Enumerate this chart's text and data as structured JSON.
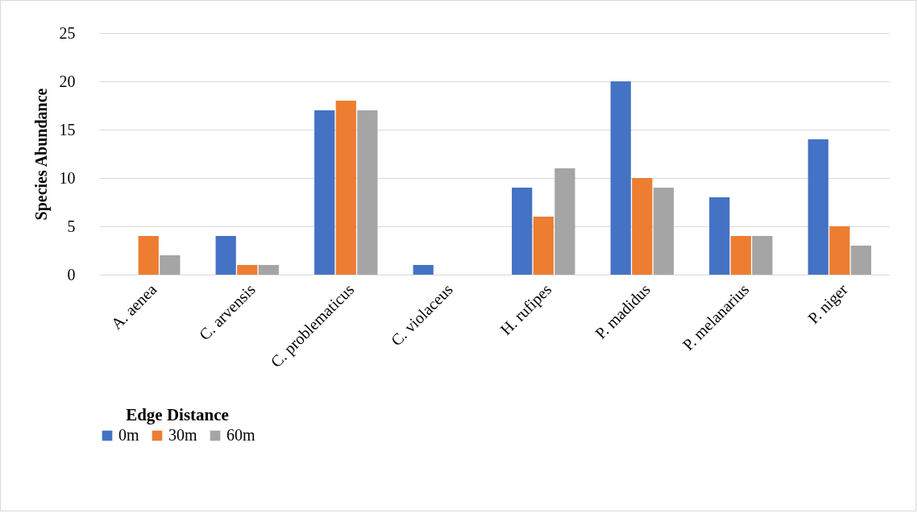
{
  "chart_data": {
    "type": "bar",
    "ylabel": "Species Abundance",
    "legend_title": "Edge Distance",
    "legend": "bottom",
    "grid": "y",
    "categories": [
      "A. aenea",
      "C. arvensis",
      "C. problematicus",
      "C. violaceus",
      "H. rufipes",
      "P. madidus",
      "P. melanarius",
      "P. niger"
    ],
    "ylim": [
      0,
      25
    ],
    "yticks": [
      0,
      5,
      10,
      15,
      20,
      25
    ],
    "series": [
      {
        "name": "0m",
        "color": "#4472c4",
        "values": [
          0,
          4,
          17,
          1,
          9,
          20,
          8,
          14
        ]
      },
      {
        "name": "30m",
        "color": "#ed7d31",
        "values": [
          4,
          1,
          18,
          0,
          6,
          10,
          4,
          5
        ]
      },
      {
        "name": "60m",
        "color": "#a5a5a5",
        "values": [
          2,
          1,
          17,
          0,
          11,
          9,
          4,
          3
        ]
      }
    ]
  }
}
